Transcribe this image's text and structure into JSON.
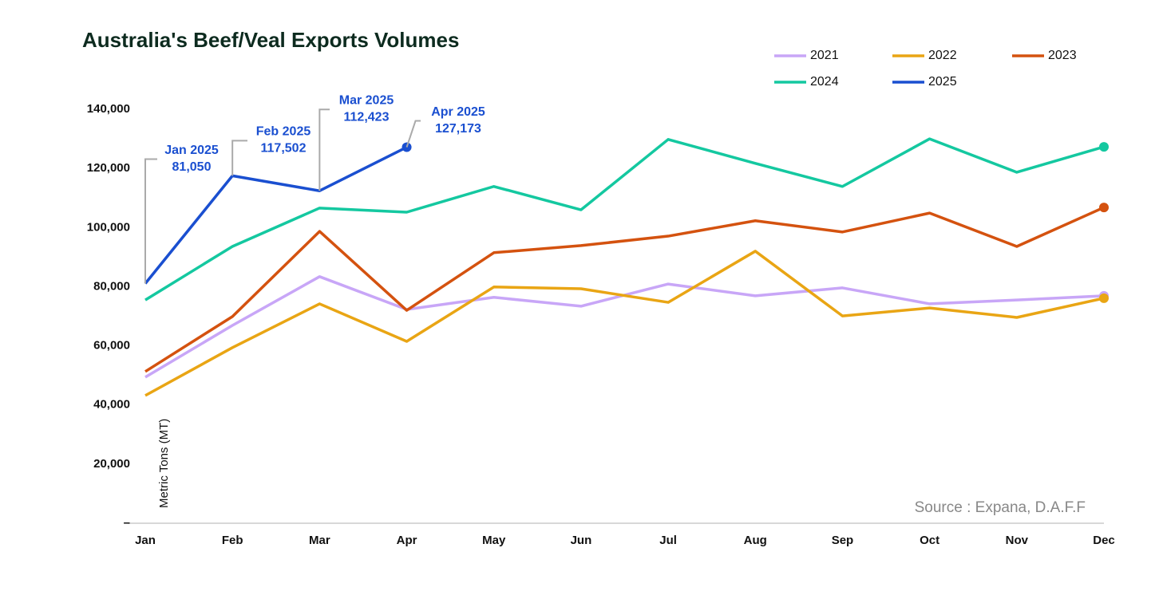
{
  "chart_data": {
    "type": "line",
    "title": "Australia's Beef/Veal Exports Volumes",
    "y_label": "Metric Tons (MT)",
    "source": "Source : Expana, D.A.F.F",
    "categories": [
      "Jan",
      "Feb",
      "Mar",
      "Apr",
      "May",
      "Jun",
      "Jul",
      "Aug",
      "Sep",
      "Oct",
      "Nov",
      "Dec"
    ],
    "ylim": [
      0,
      140000
    ],
    "yticks": [
      {
        "value": 0,
        "label": "–"
      },
      {
        "value": 20000,
        "label": "20,000"
      },
      {
        "value": 40000,
        "label": "40,000"
      },
      {
        "value": 60000,
        "label": "60,000"
      },
      {
        "value": 80000,
        "label": "80,000"
      },
      {
        "value": 100000,
        "label": "100,000"
      },
      {
        "value": 120000,
        "label": "120,000"
      },
      {
        "value": 140000,
        "label": "140,000"
      }
    ],
    "grid": false,
    "legend_position": "top-right",
    "series": [
      {
        "name": "2021",
        "color": "#c8a6f7",
        "values": [
          49400,
          66900,
          83400,
          72300,
          76400,
          73400,
          80900,
          76900,
          79600,
          74200,
          75500,
          76900
        ]
      },
      {
        "name": "2022",
        "color": "#e9a514",
        "values": [
          43200,
          59400,
          74200,
          61500,
          79900,
          79300,
          74700,
          92000,
          70100,
          72800,
          69600,
          76100
        ]
      },
      {
        "name": "2023",
        "color": "#d4520f",
        "values": [
          51300,
          69900,
          98700,
          72000,
          91500,
          93900,
          97100,
          102300,
          98500,
          104900,
          93600,
          106800
        ]
      },
      {
        "name": "2024",
        "color": "#14c8a0",
        "values": [
          75500,
          93600,
          106600,
          105200,
          113900,
          106000,
          129800,
          121700,
          113900,
          130000,
          118700,
          127300
        ]
      },
      {
        "name": "2025",
        "color": "#1a4fd0",
        "values": [
          81050,
          117502,
          112423,
          127173,
          null,
          null,
          null,
          null,
          null,
          null,
          null,
          null
        ],
        "value_labels": [
          "81,050",
          "117,502",
          "112,423",
          "127,173",
          null,
          null,
          null,
          null,
          null,
          null,
          null,
          null
        ],
        "annotations": [
          "Jan 2025",
          "Feb 2025",
          "Mar 2025",
          "Apr 2025"
        ]
      }
    ]
  }
}
